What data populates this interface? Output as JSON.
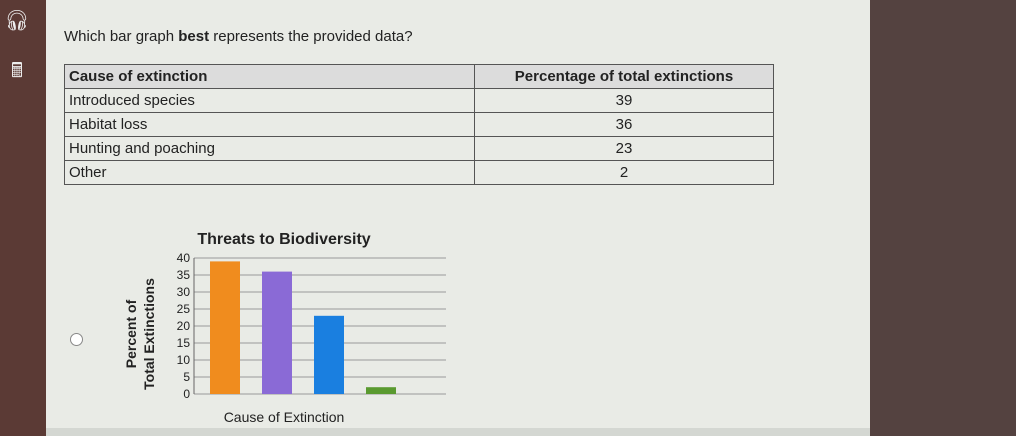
{
  "sidebar": {
    "items": [
      {
        "icon": "headphones-icon"
      },
      {
        "icon": "calculator-icon"
      }
    ]
  },
  "question": {
    "prefix": "Which bar graph ",
    "bold": "best",
    "suffix": " represents the provided data?"
  },
  "table": {
    "headers": [
      "Cause of extinction",
      "Percentage of total extinctions"
    ],
    "rows": [
      [
        "Introduced species",
        "39"
      ],
      [
        "Habitat loss",
        "36"
      ],
      [
        "Hunting and poaching",
        "23"
      ],
      [
        "Other",
        "2"
      ]
    ]
  },
  "chart_data": {
    "type": "bar",
    "title": "Threats to Biodiversity",
    "xlabel": "Cause of Extinction",
    "ylabel": "Percent of Total Extinctions",
    "ylim": [
      0,
      40
    ],
    "yticks": [
      0,
      5,
      10,
      15,
      20,
      25,
      30,
      35,
      40
    ],
    "grid": true,
    "values": [
      39,
      36,
      23,
      2
    ],
    "colors": [
      "#f08c1e",
      "#8a6ad6",
      "#1a7fe0",
      "#5a9a30"
    ]
  }
}
